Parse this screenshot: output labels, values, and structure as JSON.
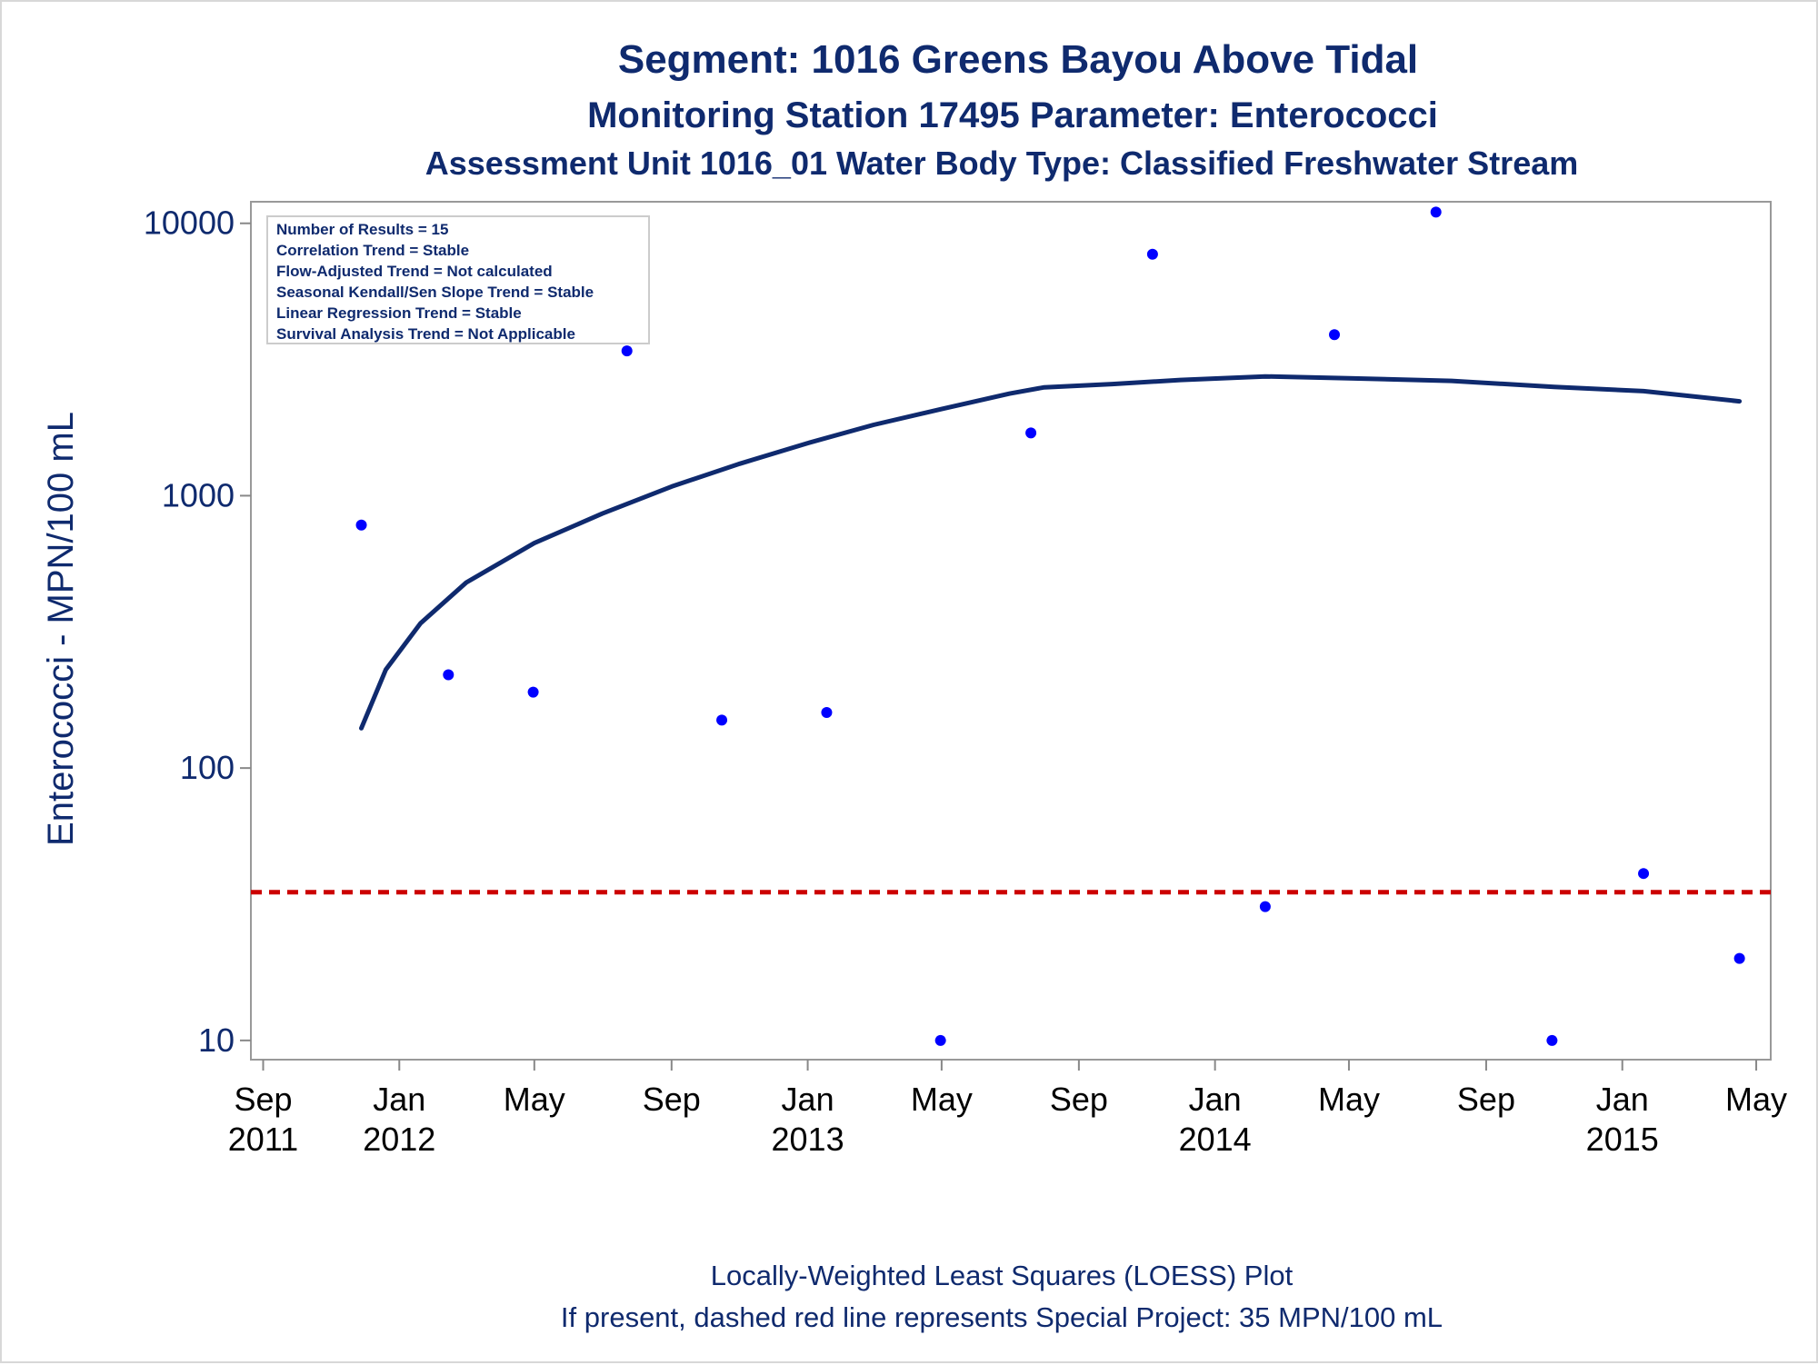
{
  "titles": {
    "line1": "Segment: 1016  Greens Bayou Above Tidal",
    "line2": "Monitoring Station 17495 Parameter: Enterococci",
    "line3": "Assessment Unit 1016_01   Water Body Type: Classified Freshwater Stream"
  },
  "stats_box": {
    "lines": [
      "Number of Results = 15",
      "Correlation Trend = Stable",
      "Flow-Adjusted Trend = Not calculated",
      "Seasonal Kendall/Sen Slope Trend = Stable",
      "Linear Regression Trend = Stable",
      "Survival Analysis Trend = Not Applicable"
    ]
  },
  "footnotes": {
    "line1": "Locally-Weighted Least Squares (LOESS) Plot",
    "line2": "If present, dashed red line represents Special Project: 35 MPN/100 mL"
  },
  "colors": {
    "title": "#0f2a6e",
    "points": "#0000ff",
    "loess": "#0f2a6e",
    "reference_line": "#cc0000",
    "axis": "#888888",
    "x_tick_text": "#000000",
    "y_tick_text": "#0f2a6e"
  },
  "chart_data": {
    "type": "scatter",
    "ylabel": "Enterococci - MPN/100 mL",
    "xlabel": "",
    "y_scale": "log",
    "ylim": [
      8.5,
      12000
    ],
    "xlim": [
      "2011-08-21",
      "2015-05-14"
    ],
    "y_ticks": [
      {
        "value": 10,
        "label": "10"
      },
      {
        "value": 100,
        "label": "100"
      },
      {
        "value": 1000,
        "label": "1000"
      },
      {
        "value": 10000,
        "label": "10000"
      }
    ],
    "x_ticks": [
      {
        "date": "2011-09-01",
        "label_top": "Sep",
        "label_bottom": "2011"
      },
      {
        "date": "2012-01-01",
        "label_top": "Jan",
        "label_bottom": "2012"
      },
      {
        "date": "2012-05-01",
        "label_top": "May",
        "label_bottom": ""
      },
      {
        "date": "2012-09-01",
        "label_top": "Sep",
        "label_bottom": ""
      },
      {
        "date": "2013-01-01",
        "label_top": "Jan",
        "label_bottom": "2013"
      },
      {
        "date": "2013-05-01",
        "label_top": "May",
        "label_bottom": ""
      },
      {
        "date": "2013-09-01",
        "label_top": "Sep",
        "label_bottom": ""
      },
      {
        "date": "2014-01-01",
        "label_top": "Jan",
        "label_bottom": "2014"
      },
      {
        "date": "2014-05-01",
        "label_top": "May",
        "label_bottom": ""
      },
      {
        "date": "2014-09-01",
        "label_top": "Sep",
        "label_bottom": ""
      },
      {
        "date": "2015-01-01",
        "label_top": "Jan",
        "label_bottom": "2015"
      },
      {
        "date": "2015-05-01",
        "label_top": "May",
        "label_bottom": ""
      }
    ],
    "series": [
      {
        "kind": "points",
        "points": [
          {
            "date": "2011-11-28",
            "y": 780
          },
          {
            "date": "2012-02-14",
            "y": 220
          },
          {
            "date": "2012-04-30",
            "y": 190
          },
          {
            "date": "2012-07-23",
            "y": 3400
          },
          {
            "date": "2012-10-16",
            "y": 150
          },
          {
            "date": "2013-01-18",
            "y": 160
          },
          {
            "date": "2013-04-30",
            "y": 10
          },
          {
            "date": "2013-07-20",
            "y": 1700
          },
          {
            "date": "2013-11-06",
            "y": 7700
          },
          {
            "date": "2014-02-15",
            "y": 31
          },
          {
            "date": "2014-04-18",
            "y": 3900
          },
          {
            "date": "2014-07-18",
            "y": 11000
          },
          {
            "date": "2014-10-30",
            "y": 10
          },
          {
            "date": "2015-01-20",
            "y": 41
          },
          {
            "date": "2015-04-16",
            "y": 20
          }
        ]
      },
      {
        "kind": "loess",
        "points": [
          {
            "date": "2011-11-28",
            "y": 140
          },
          {
            "date": "2011-12-20",
            "y": 230
          },
          {
            "date": "2012-01-20",
            "y": 340
          },
          {
            "date": "2012-03-01",
            "y": 480
          },
          {
            "date": "2012-05-01",
            "y": 670
          },
          {
            "date": "2012-07-01",
            "y": 860
          },
          {
            "date": "2012-09-01",
            "y": 1080
          },
          {
            "date": "2012-11-01",
            "y": 1310
          },
          {
            "date": "2013-01-01",
            "y": 1560
          },
          {
            "date": "2013-03-01",
            "y": 1820
          },
          {
            "date": "2013-05-01",
            "y": 2080
          },
          {
            "date": "2013-07-01",
            "y": 2370
          },
          {
            "date": "2013-08-01",
            "y": 2500
          },
          {
            "date": "2013-10-01",
            "y": 2570
          },
          {
            "date": "2013-12-01",
            "y": 2660
          },
          {
            "date": "2014-02-15",
            "y": 2740
          },
          {
            "date": "2014-05-01",
            "y": 2700
          },
          {
            "date": "2014-08-01",
            "y": 2640
          },
          {
            "date": "2014-11-01",
            "y": 2510
          },
          {
            "date": "2015-01-20",
            "y": 2420
          },
          {
            "date": "2015-04-16",
            "y": 2220
          }
        ]
      }
    ],
    "reference_line": {
      "y": 35,
      "style": "dashed"
    }
  }
}
